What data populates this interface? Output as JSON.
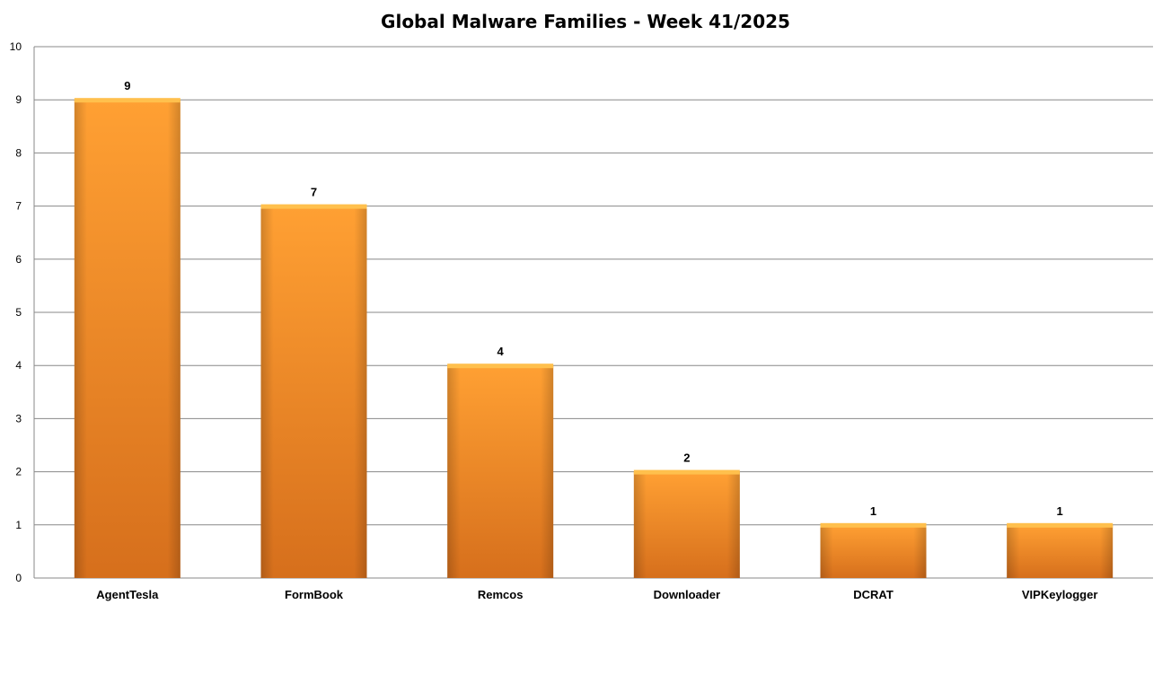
{
  "chart_data": {
    "type": "bar",
    "title": "Global Malware Families - Week 41/2025",
    "categories": [
      "AgentTesla",
      "FormBook",
      "Remcos",
      "Downloader",
      "DCRAT",
      "VIPKeylogger"
    ],
    "values": [
      9,
      7,
      4,
      2,
      1,
      1
    ],
    "xlabel": "",
    "ylabel": "",
    "ylim": [
      0,
      10
    ],
    "yticks": [
      "0",
      "1",
      "2",
      "3",
      "4",
      "5",
      "6",
      "7",
      "8",
      "9",
      "10"
    ],
    "grid": true,
    "legend": "none",
    "data_labels": true,
    "colors": {
      "bar": "#f7931e",
      "bar_dark": "#d4701a",
      "bar_top": "#ffc04d",
      "grid": "#888888",
      "axis": "#888888"
    }
  }
}
